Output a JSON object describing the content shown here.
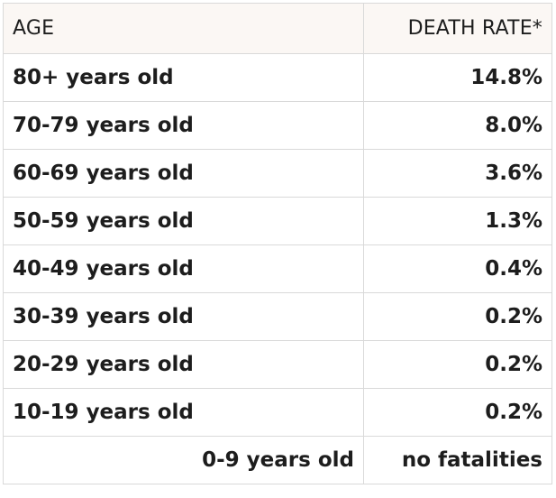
{
  "table": {
    "headers": {
      "age": "AGE",
      "death_rate": "DEATH RATE*"
    },
    "rows": [
      {
        "age": "80+ years old",
        "rate": "14.8%"
      },
      {
        "age": "70-79 years old",
        "rate": "8.0%"
      },
      {
        "age": "60-69 years old",
        "rate": "3.6%"
      },
      {
        "age": "50-59 years old",
        "rate": "1.3%"
      },
      {
        "age": "40-49 years old",
        "rate": "0.4%"
      },
      {
        "age": "30-39 years old",
        "rate": "0.2%"
      },
      {
        "age": "20-29 years old",
        "rate": "0.2%"
      },
      {
        "age": "10-19 years old",
        "rate": "0.2%"
      },
      {
        "age": "0-9 years old",
        "rate": "no fatalities"
      }
    ]
  },
  "colors": {
    "header_bg": "#fbf7f4",
    "border": "#d9d9d9",
    "text": "#1d1d1d"
  }
}
